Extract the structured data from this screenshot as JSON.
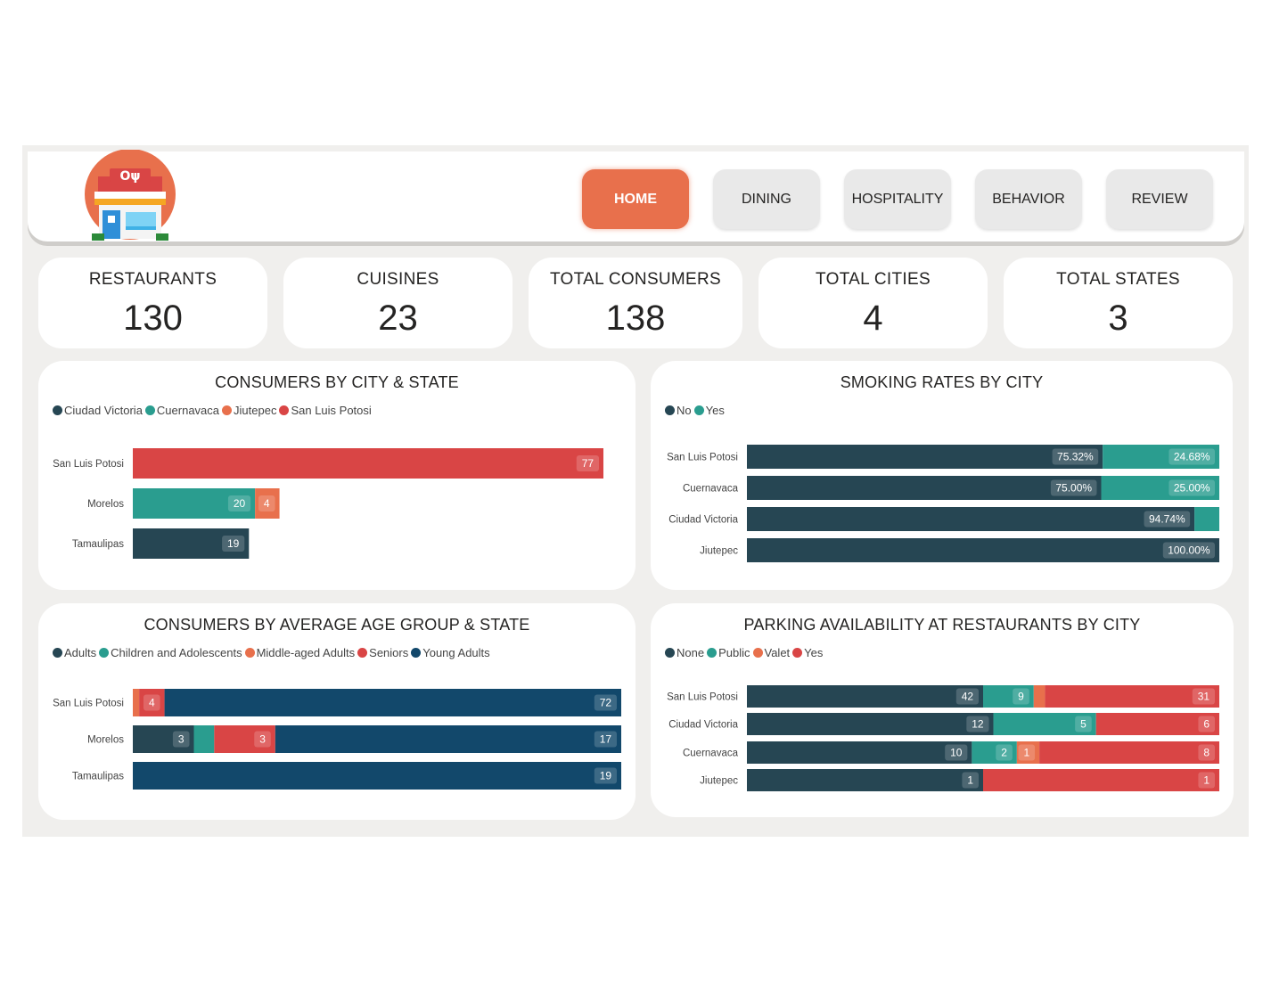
{
  "colors": {
    "dark": "#264653",
    "teal": "#2a9d8f",
    "orange": "#e8704c",
    "red": "#d94545",
    "navy": "#12486b",
    "accent": "#e8704c"
  },
  "header": {
    "logo_icon": "restaurant-storefront-icon",
    "nav": [
      {
        "label": "HOME",
        "active": true
      },
      {
        "label": "DINING",
        "active": false
      },
      {
        "label": "HOSPITALITY",
        "active": false
      },
      {
        "label": "BEHAVIOR",
        "active": false
      },
      {
        "label": "REVIEW",
        "active": false
      }
    ]
  },
  "kpis": [
    {
      "label": "RESTAURANTS",
      "value": "130"
    },
    {
      "label": "CUISINES",
      "value": "23"
    },
    {
      "label": "TOTAL CONSUMERS",
      "value": "138"
    },
    {
      "label": "TOTAL CITIES",
      "value": "4"
    },
    {
      "label": "TOTAL STATES",
      "value": "3"
    }
  ],
  "chart_data": [
    {
      "type": "bar",
      "orientation": "horizontal",
      "stacked": true,
      "title": "CONSUMERS BY CITY & STATE",
      "legend": [
        "Ciudad Victoria",
        "Cuernavaca",
        "Jiutepec",
        "San Luis Potosi"
      ],
      "legend_colors": [
        "#264653",
        "#2a9d8f",
        "#e8704c",
        "#d94545"
      ],
      "legend_placement": "top-left",
      "categories": [
        "San Luis Potosi",
        "Morelos",
        "Tamaulipas"
      ],
      "series": [
        {
          "name": "Ciudad Victoria",
          "color": "#264653",
          "values": [
            0,
            0,
            19
          ]
        },
        {
          "name": "Cuernavaca",
          "color": "#2a9d8f",
          "values": [
            0,
            20,
            0
          ]
        },
        {
          "name": "Jiutepec",
          "color": "#e8704c",
          "values": [
            0,
            4,
            0
          ]
        },
        {
          "name": "San Luis Potosi",
          "color": "#d94545",
          "values": [
            77,
            0,
            0
          ]
        }
      ],
      "xlim": [
        0,
        77
      ],
      "labels": "value"
    },
    {
      "type": "bar",
      "orientation": "horizontal",
      "stacked": true,
      "percent": true,
      "title": "SMOKING RATES BY CITY",
      "legend": [
        "No",
        "Yes"
      ],
      "legend_colors": [
        "#264653",
        "#2a9d8f"
      ],
      "legend_placement": "top-left",
      "categories": [
        "San Luis Potosi",
        "Cuernavaca",
        "Ciudad Victoria",
        "Jiutepec"
      ],
      "series": [
        {
          "name": "No",
          "color": "#264653",
          "values": [
            75.32,
            75.0,
            94.74,
            100.0
          ],
          "labels": [
            "75.32%",
            "75.00%",
            "94.74%",
            "100.00%"
          ]
        },
        {
          "name": "Yes",
          "color": "#2a9d8f",
          "values": [
            24.68,
            25.0,
            5.26,
            0
          ],
          "labels": [
            "24.68%",
            "25.00%",
            "",
            ""
          ]
        }
      ],
      "xlim": [
        0,
        100
      ]
    },
    {
      "type": "bar",
      "orientation": "horizontal",
      "stacked": true,
      "title": "CONSUMERS BY AVERAGE AGE GROUP & STATE",
      "legend": [
        "Adults",
        "Children and Adolescents",
        "Middle-aged Adults",
        "Seniors",
        "Young Adults"
      ],
      "legend_colors": [
        "#264653",
        "#2a9d8f",
        "#e8704c",
        "#d94545",
        "#12486b"
      ],
      "legend_placement": "top-left",
      "categories": [
        "San Luis Potosi",
        "Morelos",
        "Tamaulipas"
      ],
      "series": [
        {
          "name": "Adults",
          "color": "#264653",
          "values": [
            0,
            3,
            0
          ],
          "labels": [
            "",
            "3",
            ""
          ]
        },
        {
          "name": "Children and Adolescents",
          "color": "#2a9d8f",
          "values": [
            0,
            1,
            0
          ],
          "labels": [
            "",
            "",
            ""
          ]
        },
        {
          "name": "Middle-aged Adults",
          "color": "#e8704c",
          "values": [
            1,
            0,
            0
          ],
          "labels": [
            "",
            "",
            ""
          ]
        },
        {
          "name": "Seniors",
          "color": "#d94545",
          "values": [
            4,
            3,
            0
          ],
          "labels": [
            "4",
            "3",
            ""
          ]
        },
        {
          "name": "Young Adults",
          "color": "#12486b",
          "values": [
            72,
            17,
            19
          ],
          "labels": [
            "72",
            "17",
            "19"
          ]
        }
      ],
      "percent_of_row": true
    },
    {
      "type": "bar",
      "orientation": "horizontal",
      "stacked": true,
      "percent_of_row": true,
      "title": "PARKING AVAILABILITY AT RESTAURANTS BY CITY",
      "legend": [
        "None",
        "Public",
        "Valet",
        "Yes"
      ],
      "legend_colors": [
        "#264653",
        "#2a9d8f",
        "#e8704c",
        "#d94545"
      ],
      "legend_placement": "top-left",
      "categories": [
        "San Luis Potosi",
        "Ciudad Victoria",
        "Cuernavaca",
        "Jiutepec"
      ],
      "series": [
        {
          "name": "None",
          "color": "#264653",
          "values": [
            42,
            12,
            10,
            1
          ],
          "labels": [
            "42",
            "12",
            "10",
            "1"
          ]
        },
        {
          "name": "Public",
          "color": "#2a9d8f",
          "values": [
            9,
            5,
            2,
            0
          ],
          "labels": [
            "9",
            "5",
            "2",
            ""
          ]
        },
        {
          "name": "Valet",
          "color": "#e8704c",
          "values": [
            2,
            0,
            1,
            0
          ],
          "labels": [
            "",
            "",
            "1",
            ""
          ]
        },
        {
          "name": "Yes",
          "color": "#d94545",
          "values": [
            31,
            6,
            8,
            1
          ],
          "labels": [
            "31",
            "6",
            "8",
            "1"
          ]
        }
      ]
    }
  ]
}
